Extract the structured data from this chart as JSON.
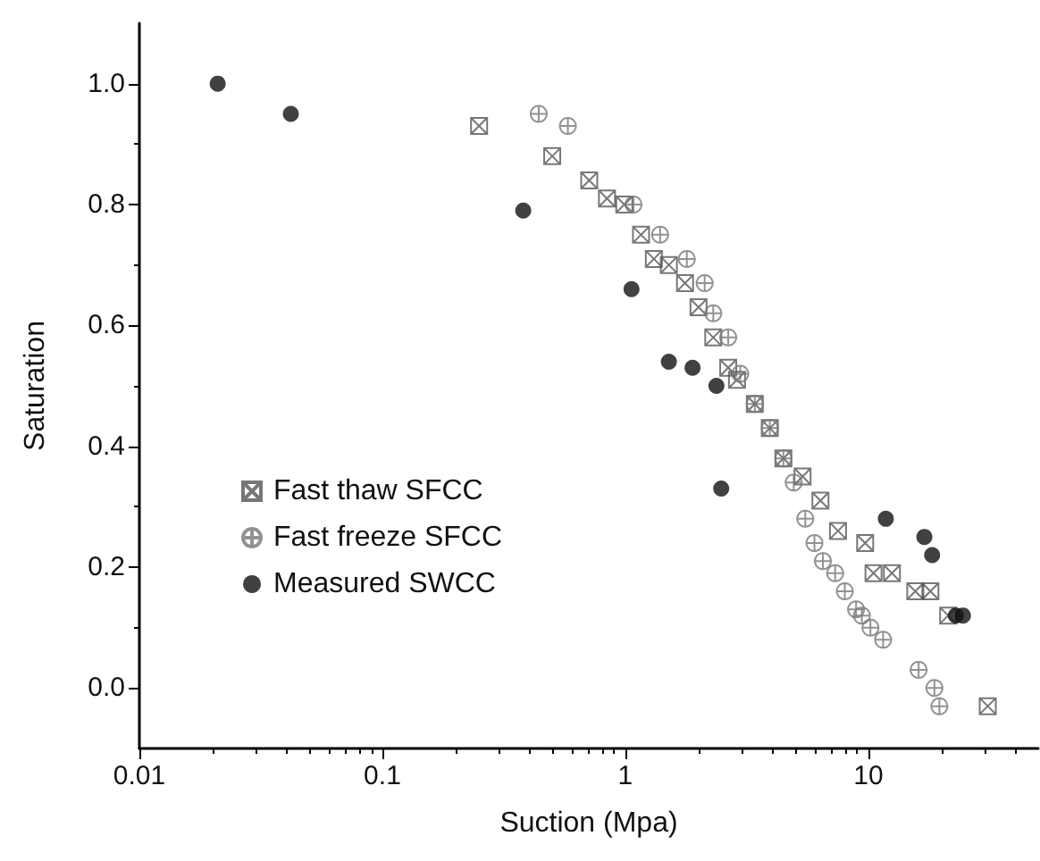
{
  "chart_data": {
    "type": "scatter",
    "xlabel": "Suction (Mpa)",
    "ylabel": "Saturation",
    "log": "x",
    "grid": false,
    "legend": "left",
    "xlim": [
      0.01,
      50
    ],
    "xticks": [
      0.01,
      0.1,
      1,
      10
    ],
    "ylim": [
      -0.1,
      1.1
    ],
    "yticks": [
      {
        "value": 0,
        "label": "0.0"
      },
      {
        "value": 0.2,
        "label": "0.2"
      },
      {
        "value": 0.4,
        "label": "0.4"
      },
      {
        "value": 0.6,
        "label": "0.6"
      },
      {
        "value": 0.8,
        "label": "0.8"
      },
      {
        "value": 1,
        "label": "1.0"
      }
    ],
    "series": [
      {
        "name": "Fast thaw SFCC",
        "color": "#555555",
        "x": [
          0.25,
          0.5,
          0.71,
          0.84,
          0.99,
          1.16,
          1.31,
          1.51,
          1.76,
          2.0,
          2.3,
          2.65,
          2.88,
          3.41,
          3.93,
          4.47,
          5.36,
          6.35,
          7.5,
          9.7,
          10.5,
          12.5,
          15.6,
          18,
          21.3,
          31
        ],
        "values": [
          0.93,
          0.88,
          0.84,
          0.81,
          0.8,
          0.75,
          0.71,
          0.7,
          0.67,
          0.63,
          0.58,
          0.53,
          0.51,
          0.47,
          0.43,
          0.38,
          0.35,
          0.31,
          0.26,
          0.24,
          0.19,
          0.19,
          0.16,
          0.16,
          0.12,
          -0.03
        ]
      },
      {
        "name": "Fast freeze SFCC",
        "color": "#777777",
        "x": [
          0.44,
          0.58,
          1.08,
          1.39,
          1.79,
          2.12,
          2.3,
          2.65,
          2.97,
          3.41,
          3.93,
          4.47,
          4.93,
          5.5,
          6.0,
          6.5,
          7.3,
          8.0,
          8.9,
          9.4,
          10.2,
          11.5,
          16.1,
          18.7,
          19.6
        ],
        "values": [
          0.95,
          0.93,
          0.8,
          0.75,
          0.71,
          0.67,
          0.62,
          0.58,
          0.52,
          0.47,
          0.43,
          0.38,
          0.34,
          0.28,
          0.24,
          0.21,
          0.19,
          0.16,
          0.13,
          0.12,
          0.1,
          0.08,
          0.03,
          0.0,
          -0.03
        ]
      },
      {
        "name": "Measured SWCC",
        "color": "#111111",
        "x": [
          0.021,
          0.042,
          0.38,
          1.06,
          1.51,
          1.89,
          2.37,
          2.48,
          11.8,
          17,
          18.3,
          22.9,
          24.5
        ],
        "values": [
          1.0,
          0.95,
          0.79,
          0.66,
          0.54,
          0.53,
          0.5,
          0.33,
          0.28,
          0.25,
          0.22,
          0.12,
          0.12
        ]
      }
    ]
  }
}
